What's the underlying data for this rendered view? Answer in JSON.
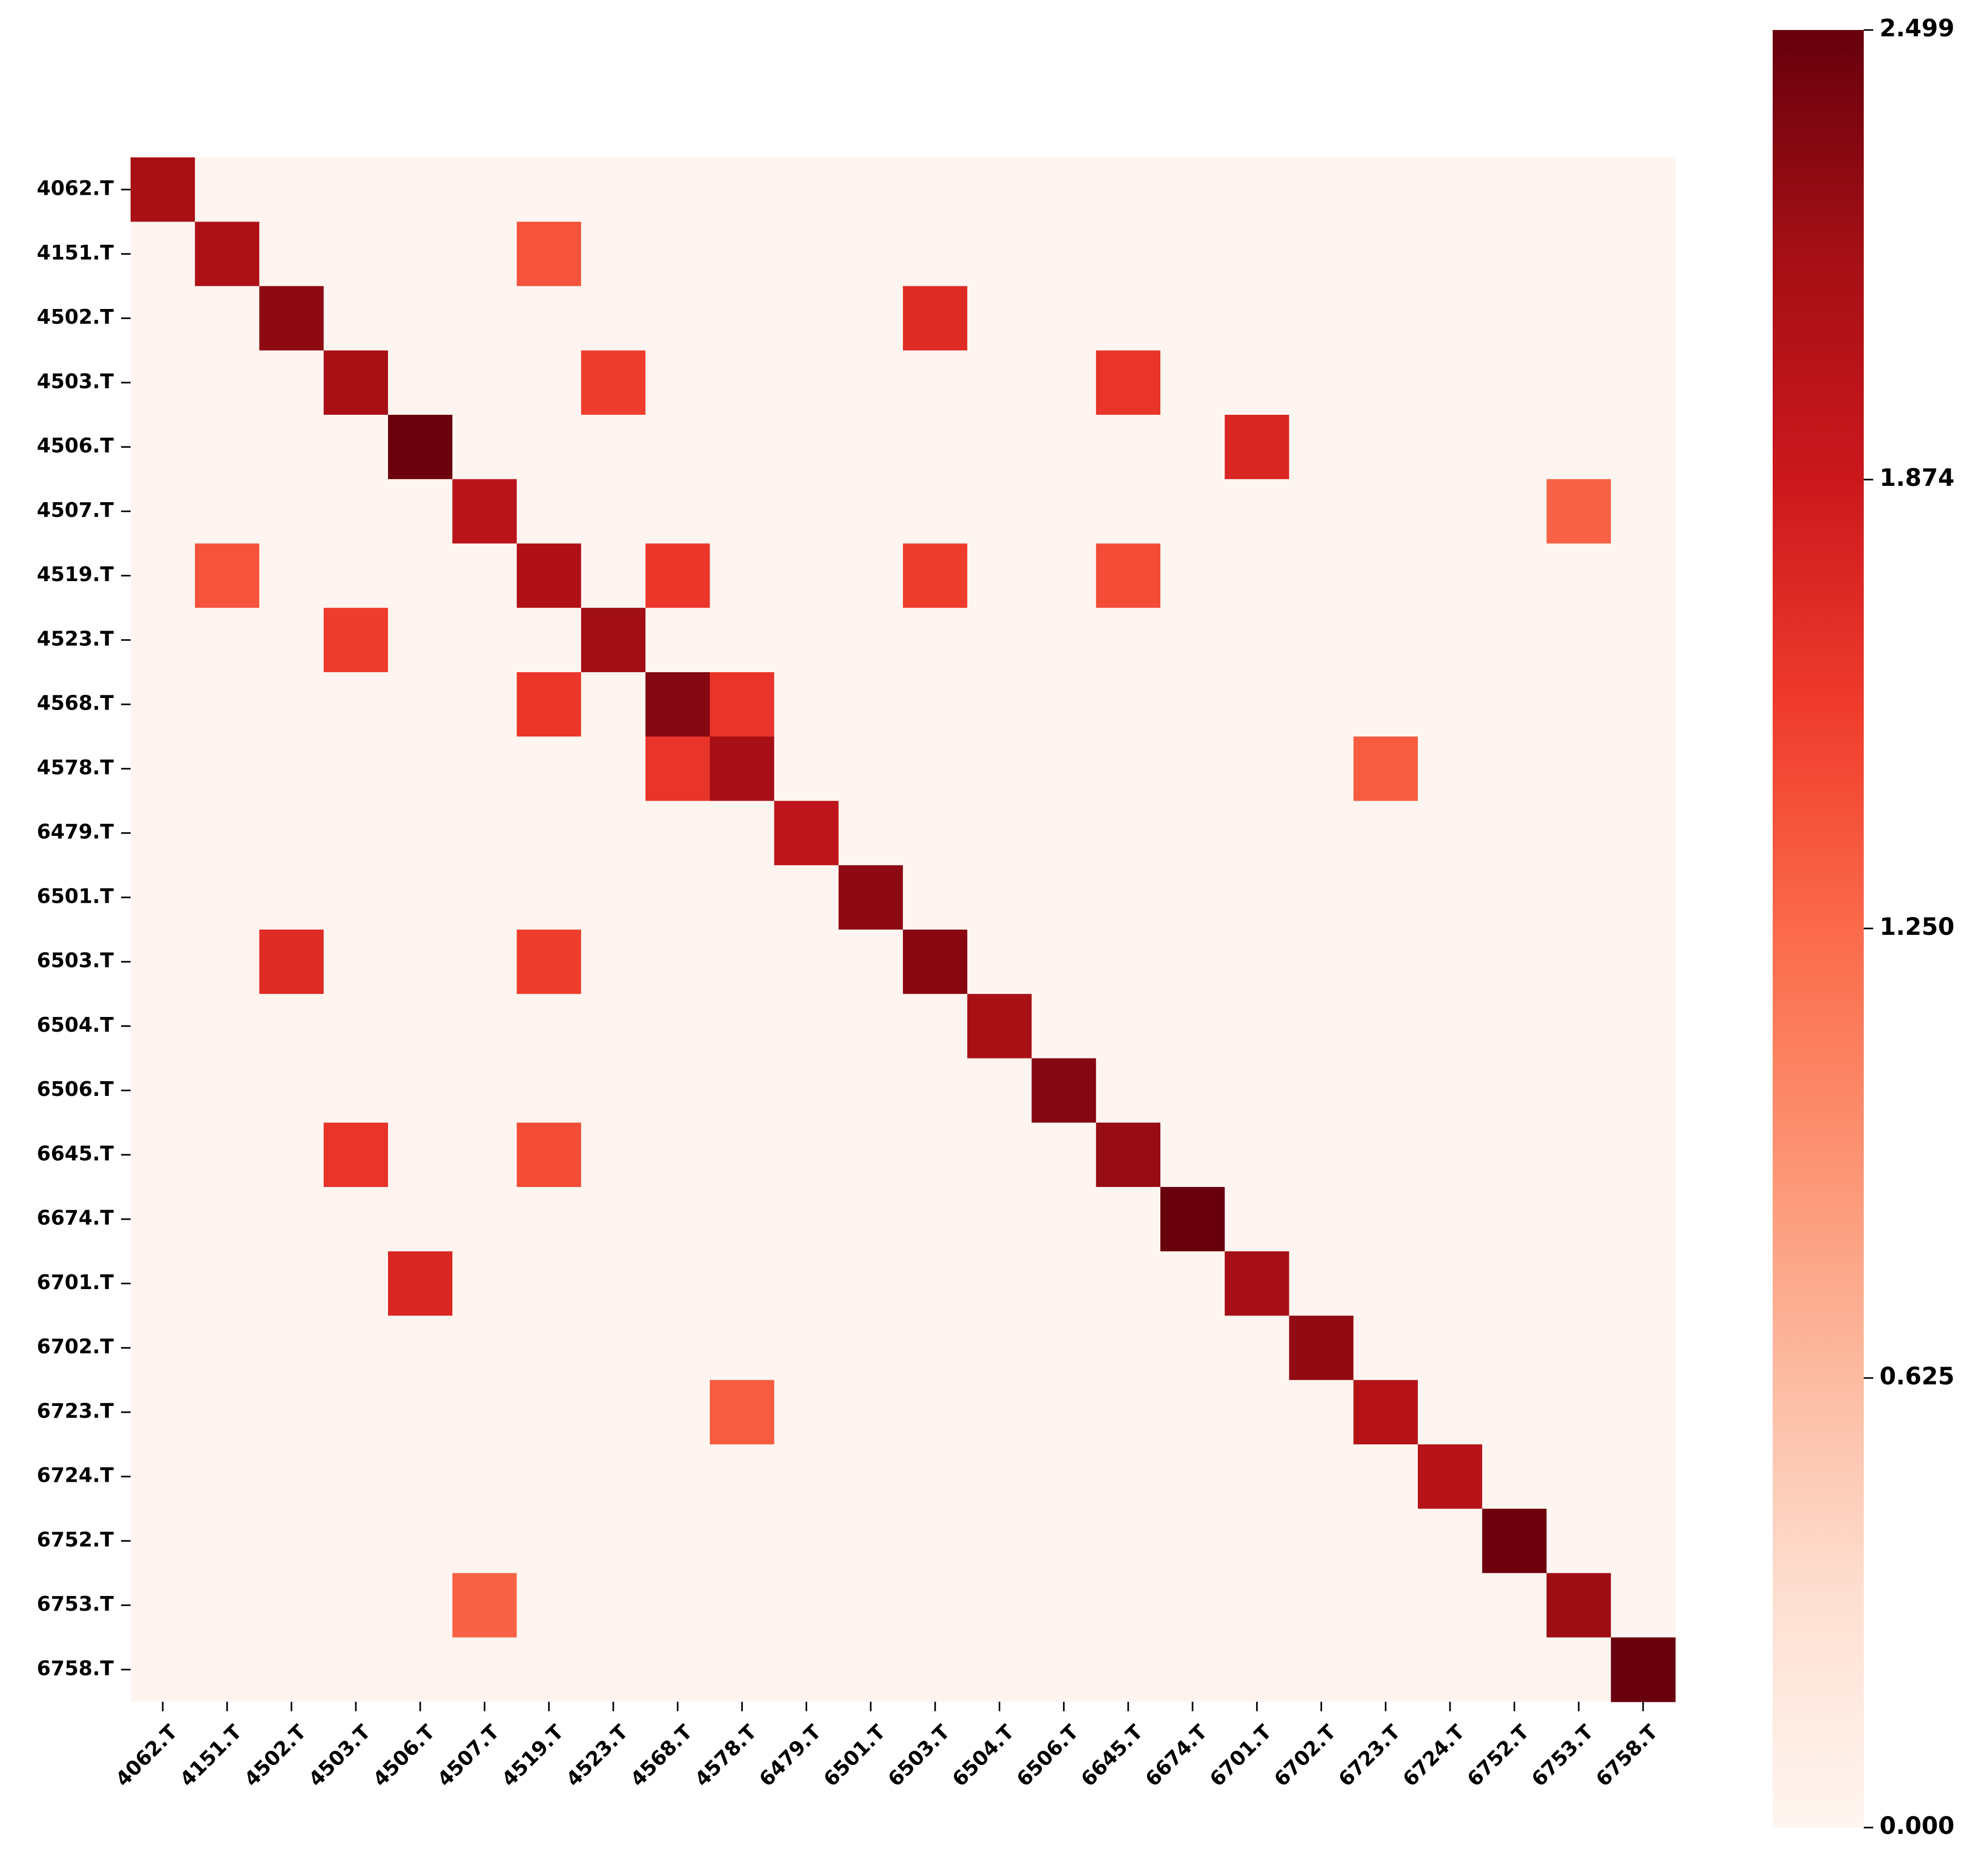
{
  "chart_data": {
    "type": "heatmap",
    "title": "",
    "xlabel": "",
    "ylabel": "",
    "labels": [
      "4062.T",
      "4151.T",
      "4502.T",
      "4503.T",
      "4506.T",
      "4507.T",
      "4519.T",
      "4523.T",
      "4568.T",
      "4578.T",
      "6479.T",
      "6501.T",
      "6503.T",
      "6504.T",
      "6506.T",
      "6645.T",
      "6674.T",
      "6701.T",
      "6702.T",
      "6723.T",
      "6724.T",
      "6752.T",
      "6753.T",
      "6758.T"
    ],
    "diagonal": [
      2.15,
      2.12,
      2.3,
      2.15,
      2.48,
      2.02,
      2.1,
      2.2,
      2.35,
      2.18,
      2.0,
      2.3,
      2.33,
      2.15,
      2.35,
      2.25,
      2.49,
      2.18,
      2.28,
      2.05,
      2.05,
      2.47,
      2.22,
      2.49
    ],
    "offdiag": [
      {
        "row": "4151.T",
        "col": "4519.T",
        "value": 1.4
      },
      {
        "row": "4502.T",
        "col": "6503.T",
        "value": 1.7
      },
      {
        "row": "4503.T",
        "col": "4523.T",
        "value": 1.55
      },
      {
        "row": "4503.T",
        "col": "6645.T",
        "value": 1.62
      },
      {
        "row": "4506.T",
        "col": "6701.T",
        "value": 1.75
      },
      {
        "row": "4507.T",
        "col": "6753.T",
        "value": 1.3
      },
      {
        "row": "4519.T",
        "col": "4568.T",
        "value": 1.6
      },
      {
        "row": "4519.T",
        "col": "6503.T",
        "value": 1.55
      },
      {
        "row": "4519.T",
        "col": "6645.T",
        "value": 1.45
      },
      {
        "row": "4568.T",
        "col": "4578.T",
        "value": 1.62
      },
      {
        "row": "4578.T",
        "col": "6723.T",
        "value": 1.35
      }
    ],
    "color_scale": {
      "name": "Reds",
      "min": 0.0,
      "max": 2.499,
      "ticks": [
        0.0,
        0.625,
        1.25,
        1.874,
        2.499
      ],
      "tick_labels": [
        "0.000",
        "0.625",
        "1.250",
        "1.874",
        "2.499"
      ]
    },
    "grid": false,
    "colorbar_placement": "right"
  }
}
